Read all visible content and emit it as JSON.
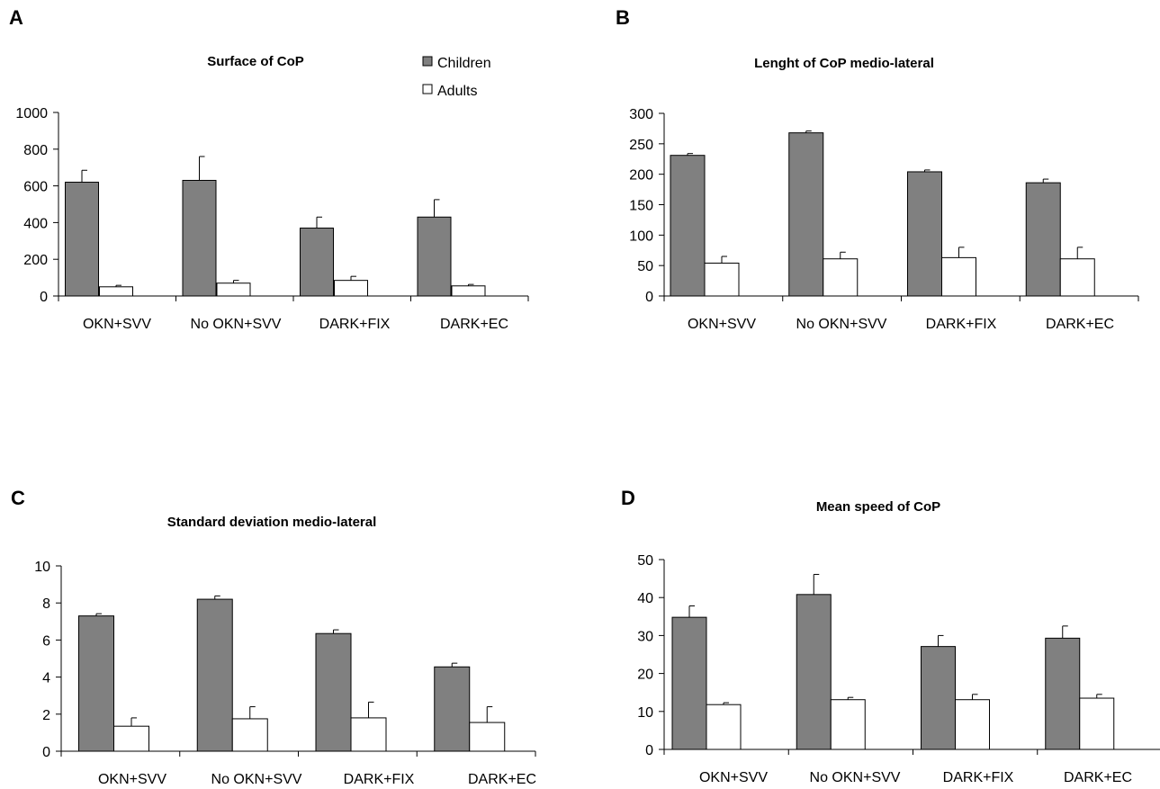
{
  "legend": {
    "entries": [
      {
        "label": "Children",
        "color": "#808080"
      },
      {
        "label": "Adults",
        "color": "#ffffff"
      }
    ]
  },
  "chart_data": [
    {
      "panel": "A",
      "type": "bar",
      "title": "Surface of CoP",
      "categories": [
        "OKN+SVV",
        "No OKN+SVV",
        "DARK+FIX",
        "DARK+EC"
      ],
      "series": [
        {
          "name": "Children",
          "values": [
            620,
            630,
            370,
            430
          ],
          "errors": [
            65,
            130,
            60,
            95
          ]
        },
        {
          "name": "Adults",
          "values": [
            50,
            70,
            85,
            55
          ],
          "errors": [
            8,
            15,
            22,
            8
          ]
        }
      ],
      "ylim": [
        0,
        1000
      ],
      "yticks": [
        0,
        200,
        400,
        600,
        800,
        1000
      ],
      "xlabel": "",
      "ylabel": "",
      "legend": "top-right",
      "grid": false
    },
    {
      "panel": "B",
      "type": "bar",
      "title": "Lenght of CoP medio-lateral",
      "categories": [
        "OKN+SVV",
        "No OKN+SVV",
        "DARK+FIX",
        "DARK+EC"
      ],
      "series": [
        {
          "name": "Children",
          "values": [
            231,
            268,
            204,
            186
          ],
          "errors": [
            3,
            3,
            3,
            6
          ]
        },
        {
          "name": "Adults",
          "values": [
            54,
            61,
            63,
            61
          ],
          "errors": [
            11,
            11,
            17,
            19
          ]
        }
      ],
      "ylim": [
        0,
        300
      ],
      "yticks": [
        0,
        50,
        100,
        150,
        200,
        250,
        300
      ],
      "xlabel": "",
      "ylabel": "",
      "grid": false
    },
    {
      "panel": "C",
      "type": "bar",
      "title": "Standard deviation medio-lateral",
      "categories": [
        "OKN+SVV",
        "No OKN+SVV",
        "DARK+FIX",
        "DARK+EC"
      ],
      "series": [
        {
          "name": "Children",
          "values": [
            7.3,
            8.2,
            6.35,
            4.55
          ],
          "errors": [
            0.12,
            0.18,
            0.2,
            0.2
          ]
        },
        {
          "name": "Adults",
          "values": [
            1.35,
            1.75,
            1.8,
            1.55
          ],
          "errors": [
            0.45,
            0.65,
            0.85,
            0.85
          ]
        }
      ],
      "ylim": [
        0,
        10
      ],
      "yticks": [
        0,
        2,
        4,
        6,
        8,
        10
      ],
      "xlabel": "",
      "ylabel": "",
      "grid": false
    },
    {
      "panel": "D",
      "type": "bar",
      "title": "Mean speed of CoP",
      "categories": [
        "OKN+SVV",
        "No OKN+SVV",
        "DARK+FIX",
        "DARK+EC"
      ],
      "series": [
        {
          "name": "Children",
          "values": [
            34.8,
            40.8,
            27.1,
            29.3
          ],
          "errors": [
            3.0,
            5.3,
            2.9,
            3.2
          ]
        },
        {
          "name": "Adults",
          "values": [
            11.8,
            13.1,
            13.1,
            13.5
          ],
          "errors": [
            0.5,
            0.6,
            1.4,
            1.0
          ]
        }
      ],
      "ylim": [
        0,
        50
      ],
      "yticks": [
        0,
        10,
        20,
        30,
        40,
        50
      ],
      "xlabel": "",
      "ylabel": "",
      "grid": false
    }
  ]
}
